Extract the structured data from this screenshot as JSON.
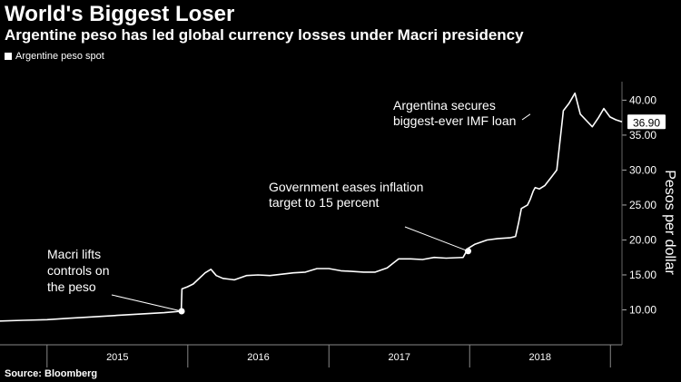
{
  "title": "World's Biggest Loser",
  "subtitle": "Argentine peso has led global currency losses under Macri presidency",
  "legend": [
    "Argentine peso spot"
  ],
  "source": "Source: Bloomberg",
  "chart_data": {
    "type": "line",
    "series": [
      {
        "name": "Argentine peso spot",
        "x": [
          "2014-09-01",
          "2014-11-01",
          "2015-01-01",
          "2015-03-01",
          "2015-05-01",
          "2015-07-01",
          "2015-09-01",
          "2015-11-01",
          "2015-12-15",
          "2015-12-17",
          "2015-12-31",
          "2016-01-15",
          "2016-02-15",
          "2016-03-01",
          "2016-03-15",
          "2016-04-01",
          "2016-05-01",
          "2016-06-01",
          "2016-07-01",
          "2016-08-01",
          "2016-09-01",
          "2016-10-01",
          "2016-11-01",
          "2016-12-01",
          "2017-01-01",
          "2017-02-01",
          "2017-03-01",
          "2017-04-01",
          "2017-05-01",
          "2017-06-01",
          "2017-07-01",
          "2017-08-01",
          "2017-09-01",
          "2017-10-01",
          "2017-11-01",
          "2017-12-15",
          "2017-12-28",
          "2018-01-15",
          "2018-02-15",
          "2018-03-15",
          "2018-04-15",
          "2018-04-30",
          "2018-05-08",
          "2018-05-15",
          "2018-05-31",
          "2018-06-07",
          "2018-06-15",
          "2018-06-20",
          "2018-07-01",
          "2018-07-15",
          "2018-08-01",
          "2018-08-15",
          "2018-08-30",
          "2018-09-01",
          "2018-09-15",
          "2018-10-01",
          "2018-10-15",
          "2018-11-01",
          "2018-11-15",
          "2018-12-01",
          "2018-12-15",
          "2018-12-31",
          "2019-01-15",
          "2019-01-31"
        ],
        "values": [
          8.4,
          8.5,
          8.6,
          8.8,
          9.0,
          9.2,
          9.4,
          9.6,
          9.8,
          13.0,
          13.3,
          13.7,
          15.3,
          15.8,
          14.9,
          14.5,
          14.3,
          14.9,
          15.0,
          14.9,
          15.1,
          15.3,
          15.4,
          15.9,
          15.9,
          15.6,
          15.5,
          15.4,
          15.4,
          16.0,
          17.3,
          17.3,
          17.2,
          17.5,
          17.4,
          17.5,
          18.8,
          19.4,
          20.0,
          20.2,
          20.3,
          20.5,
          22.5,
          24.5,
          25.0,
          25.8,
          27.0,
          27.5,
          27.3,
          27.8,
          29.0,
          30.0,
          37.5,
          38.5,
          39.5,
          41.0,
          38.0,
          37.0,
          36.2,
          37.5,
          38.8,
          37.6,
          37.2,
          36.9
        ]
      }
    ],
    "y_axis": {
      "label": "Pesos per dollar",
      "ticks": [
        "10.00",
        "15.00",
        "20.00",
        "25.00",
        "30.00",
        "35.00",
        "40.00"
      ],
      "range": [
        5,
        42
      ]
    },
    "x_axis": {
      "ticks": [
        "2015",
        "2016",
        "2017",
        "2018"
      ],
      "range": [
        "2014-09-01",
        "2019-01-31"
      ]
    },
    "last_value_label": "36.90",
    "annotations": [
      {
        "text": [
          "Macri lifts",
          "controls on",
          "the peso"
        ],
        "date": "2015-12-16",
        "value": 9.8
      },
      {
        "text": [
          "Government eases inflation",
          "target to 15 percent"
        ],
        "date": "2017-12-28",
        "value": 18.4
      },
      {
        "text": [
          "Argentina secures",
          "biggest-ever IMF loan"
        ],
        "date": "2018-06-07",
        "value": 38.0
      }
    ],
    "grid": false,
    "legend_position": "top-left",
    "colors": {
      "background": "#000000",
      "line": "#ffffff",
      "text": "#ffffff"
    }
  }
}
